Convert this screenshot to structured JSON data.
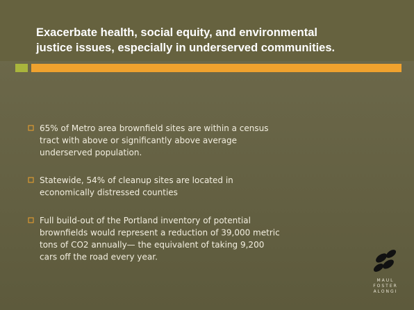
{
  "title": {
    "lines": [
      "Exacerbate health, social equity, and environmental",
      "justice issues, especially in underserved communities."
    ]
  },
  "bullets": [
    {
      "lines": [
        "65% of Metro area brownfield sites are within a census",
        "tract with above or significantly above average",
        "underserved population."
      ]
    },
    {
      "lines": [
        "Statewide, 54% of cleanup sites are located in",
        "economically distressed counties"
      ]
    },
    {
      "lines": [
        "Full build-out of the Portland inventory of potential",
        "brownfields would represent a reduction of 39,000 metric",
        "tons of CO2 annually— the equivalent of taking 9,200",
        "cars off the road every year."
      ]
    }
  ],
  "logo": {
    "lines": [
      "MAUL",
      "FOSTER",
      "ALONGI"
    ]
  }
}
